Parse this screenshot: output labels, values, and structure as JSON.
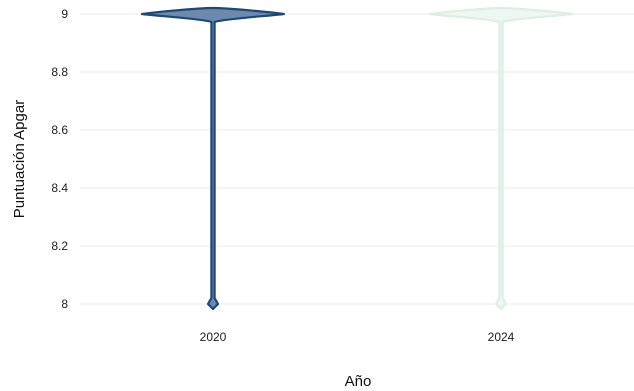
{
  "chart_data": {
    "type": "violin",
    "title": "",
    "xlabel": "Año",
    "ylabel": "Puntuación Apgar",
    "ylim": [
      8,
      9
    ],
    "yticks": [
      8,
      8.2,
      8.4,
      8.6,
      8.8,
      9
    ],
    "categories": [
      "2020",
      "2024"
    ],
    "grid": true,
    "series": [
      {
        "category": "2020",
        "min": 8,
        "max": 9,
        "mode": 9,
        "fill": "#6d89ad",
        "stroke": "#1f4874"
      },
      {
        "category": "2024",
        "min": 8,
        "max": 9,
        "mode": 9,
        "fill": "#eef7f1",
        "stroke": "#dcefe3"
      }
    ]
  }
}
